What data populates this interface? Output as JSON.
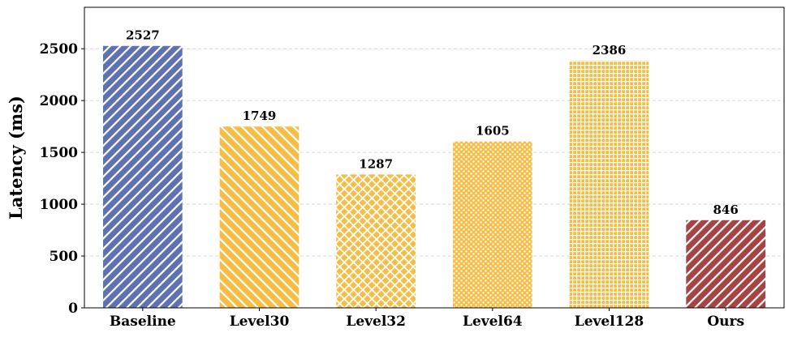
{
  "chart_data": {
    "type": "bar",
    "title": "",
    "xlabel": "",
    "ylabel": "Latency (ms)",
    "categories": [
      "Baseline",
      "Level30",
      "Level32",
      "Level64",
      "Level128",
      "Ours"
    ],
    "values": [
      2527,
      1749,
      1287,
      1605,
      2386,
      846
    ],
    "data_labels": [
      "2527",
      "1749",
      "1287",
      "1605",
      "2386",
      "846"
    ],
    "ylim": [
      0,
      2900
    ],
    "yticks": [
      0,
      500,
      1000,
      1500,
      2000,
      2500
    ],
    "ytick_labels": [
      "0",
      "500",
      "1000",
      "1500",
      "2000",
      "2500"
    ],
    "grid": "horizontal dashed",
    "legend": "none",
    "bar_colors": [
      "#5f72b0",
      "#f6bd45",
      "#f6bd45",
      "#f6bd45",
      "#f6bd45",
      "#a64444"
    ],
    "bar_patterns": [
      "diagonal-forward",
      "diagonal-back",
      "crosshatch-diagonal",
      "dots",
      "grid",
      "diagonal-forward"
    ]
  }
}
